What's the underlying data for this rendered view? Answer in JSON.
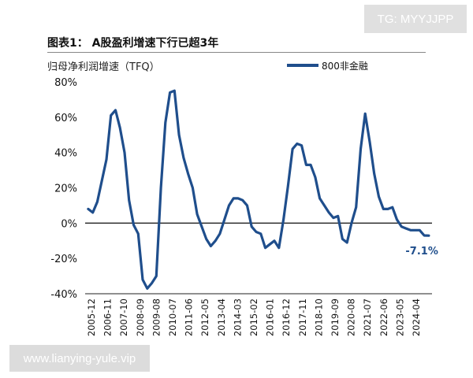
{
  "header": {
    "figure_title": "图表1：  A股盈利增速下行已超3年",
    "unit_label": "归母净利润增速（TFQ）"
  },
  "watermarks": {
    "tg": "TG: MYYJJPP",
    "site": "www.lianying-yule.vip"
  },
  "colors": {
    "series": "#1f4e8c",
    "axis": "#222222"
  },
  "chart_data": {
    "type": "line",
    "title": "",
    "xlabel": "",
    "ylabel": "",
    "ylim": [
      -40,
      80
    ],
    "yticks": [
      -40,
      -20,
      0,
      20,
      40,
      60,
      80
    ],
    "ytick_labels": [
      "-40%",
      "-20%",
      "0%",
      "20%",
      "40%",
      "60%",
      "80%"
    ],
    "xlim": [
      2005.75,
      2024.85
    ],
    "xtick_labels": [
      "2005-12",
      "2006-11",
      "2007-10",
      "2008-09",
      "2009-08",
      "2010-07",
      "2011-06",
      "2012-05",
      "2013-04",
      "2014-03",
      "2015-02",
      "2016-01",
      "2016-12",
      "2017-11",
      "2018-10",
      "2019-09",
      "2020-08",
      "2021-07",
      "2022-06",
      "2023-05",
      "2024-04"
    ],
    "grid": false,
    "legend_position": "top-right",
    "series": [
      {
        "name": "800非金融",
        "x": [
          2005.92,
          2006.17,
          2006.42,
          2006.67,
          2006.92,
          2007.17,
          2007.42,
          2007.67,
          2007.92,
          2008.17,
          2008.42,
          2008.67,
          2008.92,
          2009.17,
          2009.42,
          2009.67,
          2009.92,
          2010.17,
          2010.42,
          2010.67,
          2010.92,
          2011.17,
          2011.42,
          2011.67,
          2011.92,
          2012.17,
          2012.42,
          2012.67,
          2012.92,
          2013.17,
          2013.42,
          2013.67,
          2013.92,
          2014.17,
          2014.42,
          2014.67,
          2014.92,
          2015.17,
          2015.42,
          2015.67,
          2015.92,
          2016.17,
          2016.42,
          2016.67,
          2016.92,
          2017.17,
          2017.42,
          2017.67,
          2017.92,
          2018.17,
          2018.42,
          2018.67,
          2018.92,
          2019.17,
          2019.42,
          2019.67,
          2019.92,
          2020.17,
          2020.42,
          2020.67,
          2020.92,
          2021.17,
          2021.42,
          2021.67,
          2021.92,
          2022.17,
          2022.42,
          2022.67,
          2022.92,
          2023.17,
          2023.42,
          2023.67,
          2023.92,
          2024.17,
          2024.42,
          2024.67
        ],
        "values": [
          8,
          6,
          12,
          24,
          36,
          61,
          64,
          54,
          40,
          13,
          -1,
          -6,
          -32,
          -37,
          -34,
          -30,
          20,
          57,
          74,
          75,
          50,
          37,
          28,
          20,
          5,
          -2,
          -9,
          -13,
          -10,
          -6,
          2,
          10,
          14,
          14,
          13,
          10,
          -2,
          -5,
          -6,
          -14,
          -12,
          -10,
          -14,
          2,
          21,
          42,
          45,
          44,
          33,
          33,
          26,
          14,
          10,
          6,
          3,
          4,
          -9,
          -11,
          0,
          9,
          42,
          62,
          46,
          28,
          15,
          8,
          8,
          9,
          2,
          -2,
          -3,
          -4,
          -4,
          -4,
          -7,
          -7.1
        ]
      }
    ],
    "annotations": [
      {
        "text": "-7.1%",
        "x": 2024.67,
        "y": -7.1
      }
    ]
  }
}
